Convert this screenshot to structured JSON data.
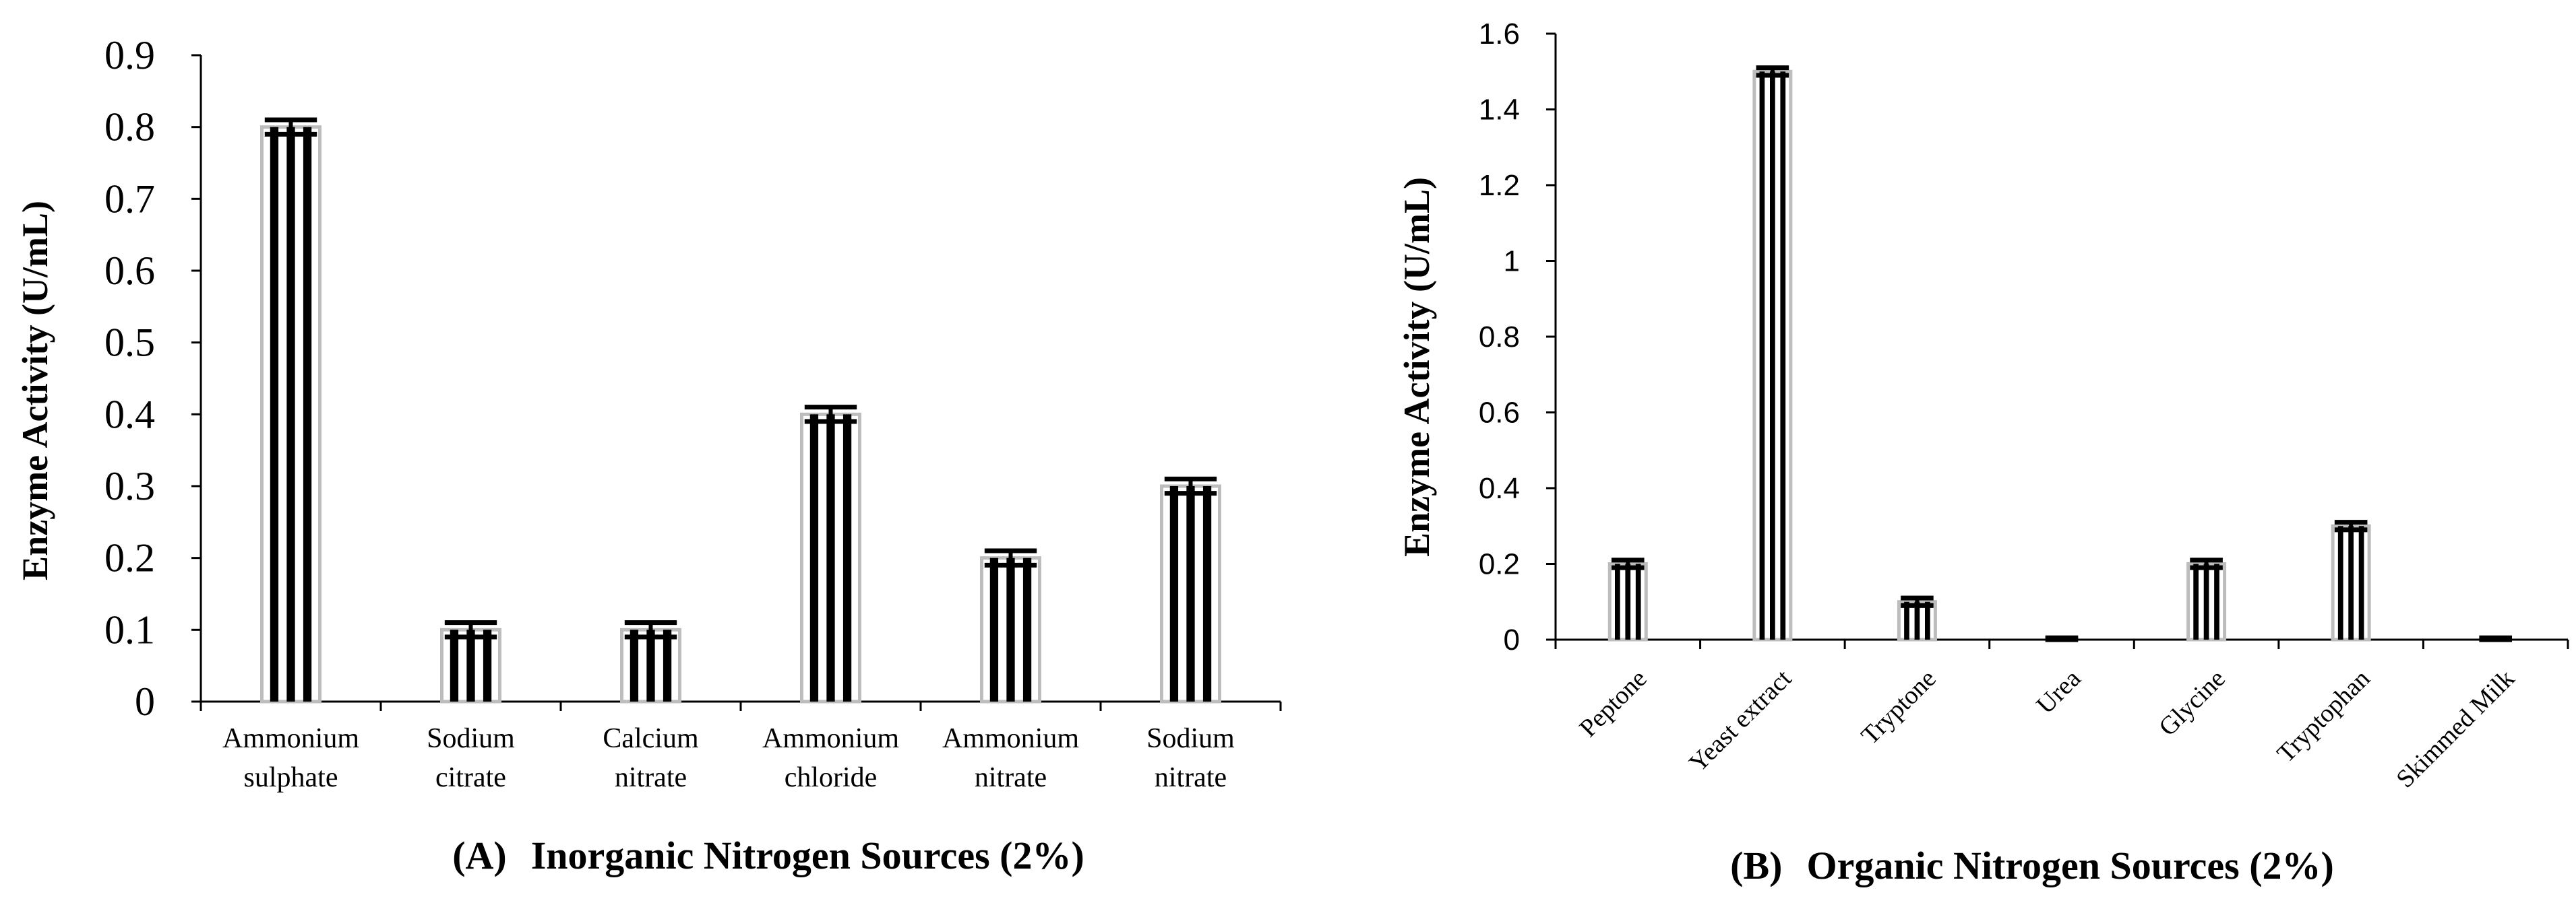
{
  "chart_data": [
    {
      "type": "bar",
      "panel": "(A)",
      "caption": "Inorganic Nitrogen Sources (2%)",
      "ylabel": "Enzyme Activity (U/mL)",
      "xlabel": "",
      "ylim": [
        0,
        0.9
      ],
      "yticks": [
        "0",
        "0.1",
        "0.2",
        "0.3",
        "0.4",
        "0.5",
        "0.6",
        "0.7",
        "0.8",
        "0.9"
      ],
      "categories": [
        [
          "Ammonium",
          "sulphate"
        ],
        [
          "Sodium",
          "citrate"
        ],
        [
          "Calcium",
          "nitrate"
        ],
        [
          "Ammonium",
          "chloride"
        ],
        [
          "Ammonium",
          "nitrate"
        ],
        [
          "Sodium",
          "nitrate"
        ]
      ],
      "values": [
        0.8,
        0.1,
        0.1,
        0.4,
        0.2,
        0.3
      ],
      "errors": [
        0.01,
        0.01,
        0.01,
        0.01,
        0.01,
        0.01
      ]
    },
    {
      "type": "bar",
      "panel": "(B)",
      "caption": "Organic Nitrogen Sources (2%)",
      "ylabel": "Enzyme Activity (U/mL)",
      "xlabel": "",
      "ylim": [
        0,
        1.6
      ],
      "yticks": [
        "0",
        "0.2",
        "0.4",
        "0.6",
        "0.8",
        "1",
        "1.2",
        "1.4",
        "1.6"
      ],
      "categories": [
        "Peptone",
        "Yeast extract",
        "Tryptone",
        "Urea",
        "Glycine",
        "Tryptophan",
        "Skimmed Milk"
      ],
      "values": [
        0.2,
        1.5,
        0.1,
        0.0,
        0.2,
        0.3,
        0.0
      ],
      "errors": [
        0.01,
        0.01,
        0.01,
        0.005,
        0.01,
        0.01,
        0.005
      ]
    }
  ]
}
